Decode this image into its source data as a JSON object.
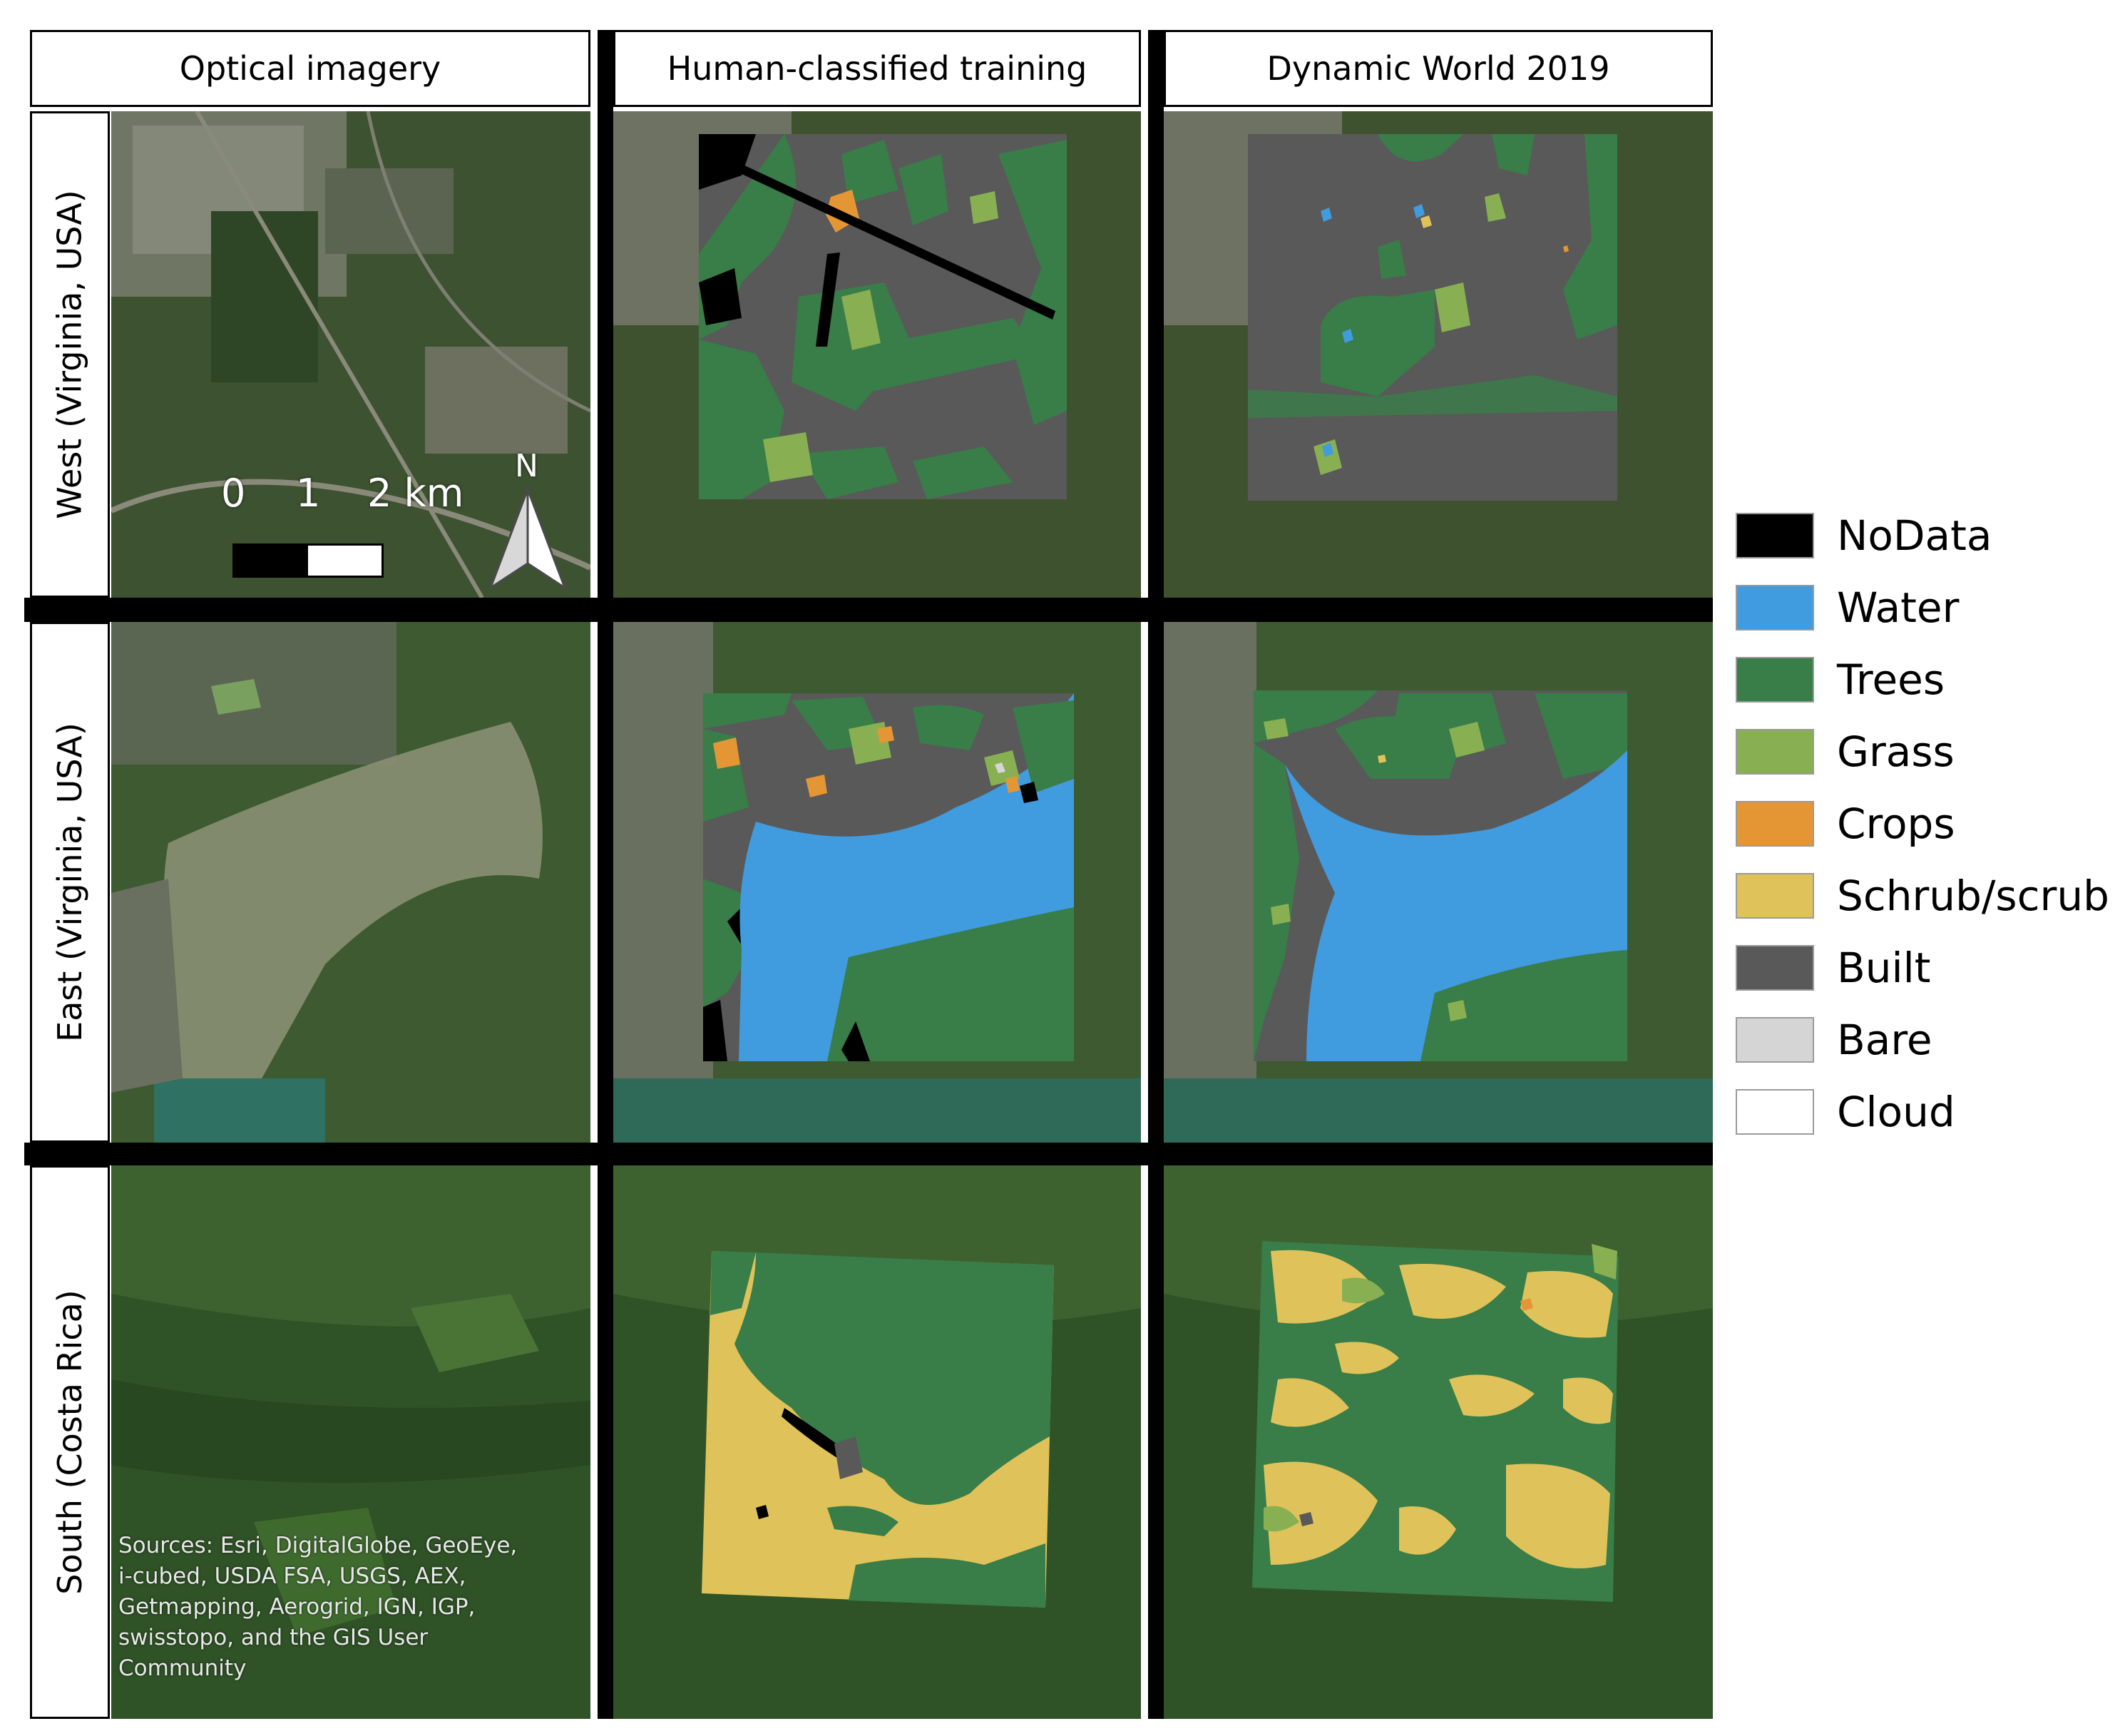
{
  "columns": [
    "Optical imagery",
    "Human-classified training",
    "Dynamic World 2019"
  ],
  "rows": [
    "West (Virginia, USA)",
    "East (Virginia, USA)",
    "South (Costa Rica)"
  ],
  "scale_bar": {
    "labels": [
      "0",
      "1",
      "2 km"
    ]
  },
  "north_arrow": {
    "label": "N",
    "icon": "north-arrow-icon"
  },
  "attribution": "Sources: Esri, DigitalGlobe, GeoEye, i-cubed, USDA FSA, USGS, AEX, Getmapping, Aerogrid, IGN, IGP, swisstopo, and the GIS User Community",
  "legend": [
    {
      "label": "NoData",
      "color": "#000000"
    },
    {
      "label": "Water",
      "color": "#419bdf"
    },
    {
      "label": "Trees",
      "color": "#397d49"
    },
    {
      "label": "Grass",
      "color": "#88b053"
    },
    {
      "label": "Crops",
      "color": "#e49635"
    },
    {
      "label": "Schrub/scrub",
      "color": "#dfc35a"
    },
    {
      "label": "Built",
      "color": "#595959"
    },
    {
      "label": "Bare",
      "color": "#d5d5d5"
    },
    {
      "label": "Cloud",
      "color": "#ffffff"
    }
  ]
}
